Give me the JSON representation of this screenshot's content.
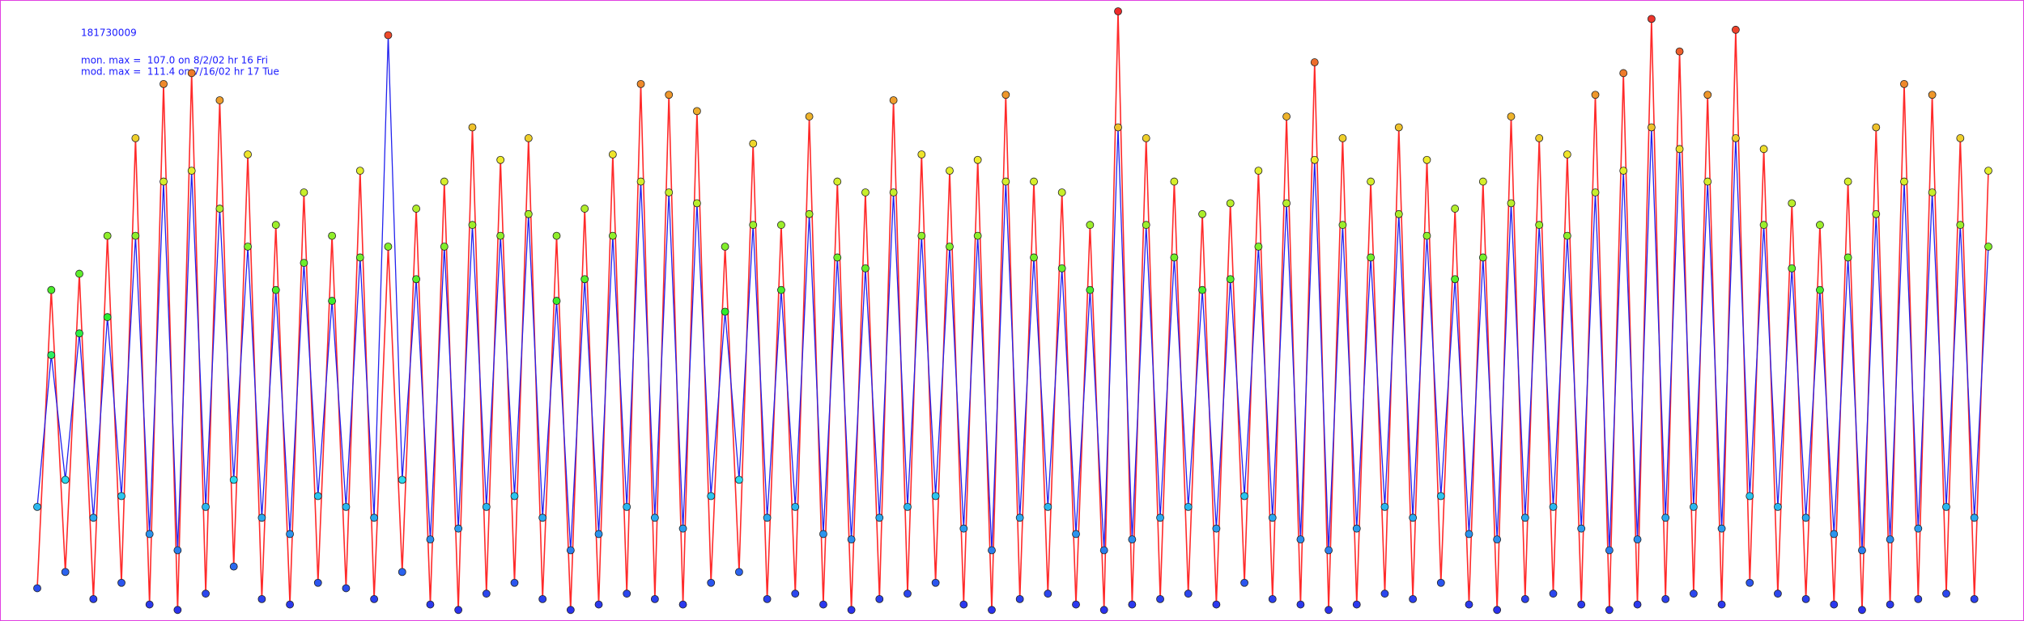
{
  "chart_data": {
    "type": "line",
    "title": "181730009",
    "annotations": [
      "mon. max =  107.0 on 8/2/02 hr 16 Fri",
      "mod. max =  111.4 on 7/16/02 hr 17 Tue"
    ],
    "series": [
      {
        "color": "#ff2a2a",
        "values": [
          5,
          60,
          8,
          63,
          3,
          70,
          6,
          88,
          2,
          98,
          1,
          100,
          4,
          95,
          9,
          85,
          3,
          72,
          2,
          78,
          6,
          70,
          5,
          82,
          3,
          68,
          8,
          75,
          2,
          80,
          1,
          90,
          4,
          84,
          6,
          88,
          3,
          70,
          1,
          75,
          2,
          85,
          4,
          98,
          3,
          96,
          2,
          93,
          6,
          68,
          8,
          87,
          3,
          72,
          4,
          92,
          2,
          80,
          1,
          78,
          3,
          95,
          4,
          85,
          6,
          82,
          2,
          84,
          1,
          96,
          3,
          80,
          4,
          78,
          2,
          72,
          1,
          111.4,
          2,
          88,
          3,
          80,
          4,
          74,
          2,
          76,
          6,
          82,
          3,
          92,
          2,
          102,
          1,
          88,
          2,
          80,
          4,
          90,
          3,
          84,
          6,
          75,
          2,
          80,
          1,
          92,
          3,
          88,
          4,
          85,
          2,
          96,
          1,
          100,
          2,
          110,
          3,
          104,
          4,
          96,
          2,
          108,
          6,
          86,
          4,
          76,
          3,
          72,
          2,
          80,
          1,
          90,
          2,
          98,
          3,
          96,
          4,
          88,
          3,
          82
        ]
      },
      {
        "color": "#2222ee",
        "values": [
          20,
          48,
          25,
          52,
          18,
          55,
          22,
          70,
          15,
          80,
          12,
          82,
          20,
          75,
          25,
          68,
          18,
          60,
          15,
          65,
          22,
          58,
          20,
          66,
          18,
          107.0,
          25,
          62,
          14,
          68,
          16,
          72,
          20,
          70,
          22,
          74,
          18,
          58,
          12,
          62,
          15,
          70,
          20,
          80,
          18,
          78,
          16,
          76,
          22,
          56,
          25,
          72,
          18,
          60,
          20,
          74,
          15,
          66,
          14,
          64,
          18,
          78,
          20,
          70,
          22,
          68,
          16,
          70,
          12,
          80,
          18,
          66,
          20,
          64,
          15,
          60,
          12,
          90,
          14,
          72,
          18,
          66,
          20,
          60,
          16,
          62,
          22,
          68,
          18,
          76,
          14,
          84,
          12,
          72,
          16,
          66,
          20,
          74,
          18,
          70,
          22,
          62,
          15,
          66,
          14,
          76,
          18,
          72,
          20,
          70,
          16,
          78,
          12,
          82,
          14,
          90,
          18,
          86,
          20,
          80,
          16,
          88,
          22,
          72,
          20,
          64,
          18,
          60,
          15,
          66,
          12,
          74,
          14,
          80,
          16,
          78,
          20,
          72,
          18,
          68
        ]
      }
    ]
  }
}
